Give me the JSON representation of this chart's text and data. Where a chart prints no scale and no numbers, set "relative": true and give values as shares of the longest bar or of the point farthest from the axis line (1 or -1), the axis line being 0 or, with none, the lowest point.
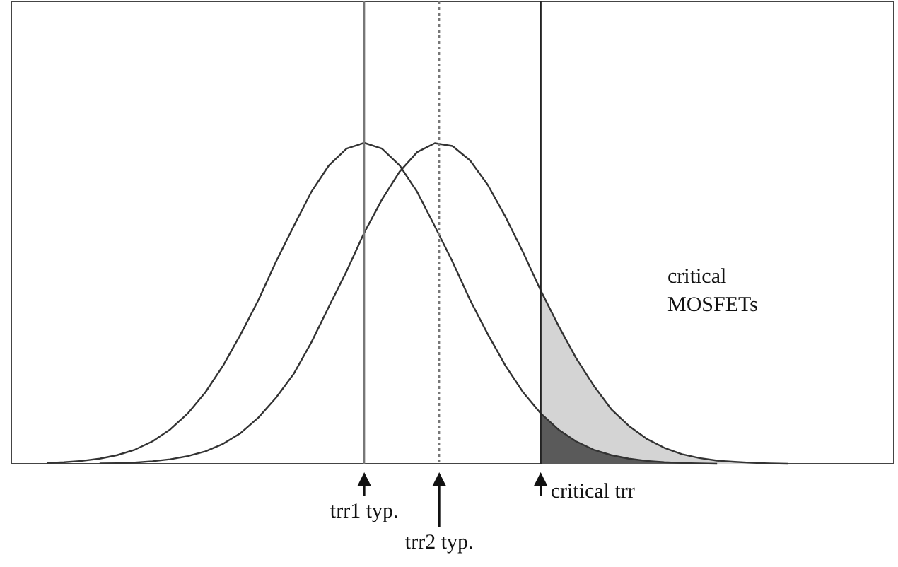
{
  "chart_data": {
    "type": "line",
    "relative": true,
    "categories": [
      null,
      null,
      null,
      null,
      null,
      null,
      null,
      null,
      null,
      null,
      null,
      null,
      null,
      null,
      null,
      null,
      null,
      null,
      null,
      null,
      null,
      null,
      null,
      null,
      null,
      null,
      null,
      null,
      null,
      null,
      null,
      null,
      null,
      null,
      null,
      null,
      null,
      null,
      null,
      null,
      null,
      null,
      null
    ],
    "series": [
      {
        "type": "area",
        "color": "#d4d4d4",
        "values": [
          null,
          null,
          null,
          null,
          null,
          null,
          null,
          null,
          null,
          null,
          null,
          null,
          null,
          null,
          null,
          null,
          null,
          null,
          null,
          null,
          null,
          null,
          null,
          null,
          null,
          null,
          null,
          null,
          0.54,
          0.431,
          0.33,
          0.244,
          0.17,
          0.118,
          0.078,
          0.05,
          0.03,
          0.018,
          0.01,
          0.006,
          0.003,
          0.001,
          0
        ]
      },
      {
        "type": "area",
        "color": "#5a5a5a",
        "values": [
          null,
          null,
          null,
          null,
          null,
          null,
          null,
          null,
          null,
          null,
          null,
          null,
          null,
          null,
          null,
          null,
          null,
          null,
          null,
          null,
          null,
          null,
          null,
          null,
          null,
          null,
          null,
          null,
          0.157,
          0.107,
          0.07,
          0.044,
          0.027,
          0.016,
          0.009,
          0.005,
          0.0025,
          0.001,
          0,
          null,
          null,
          null,
          null
        ]
      },
      {
        "color": "#333333",
        "values": [
          0.0025,
          0.005,
          0.009,
          0.016,
          0.027,
          0.044,
          0.07,
          0.107,
          0.157,
          0.223,
          0.306,
          0.404,
          0.51,
          0.63,
          0.74,
          0.847,
          0.93,
          0.982,
          1,
          0.982,
          0.93,
          0.847,
          0.74,
          0.63,
          0.51,
          0.404,
          0.306,
          0.223,
          0.157,
          0.107,
          0.07,
          0.044,
          0.027,
          0.016,
          0.009,
          0.005,
          0.0025,
          0.001,
          0,
          null,
          null,
          null,
          null
        ]
      },
      {
        "color": "#333333",
        "values": [
          null,
          null,
          null,
          0.001,
          0.002,
          0.004,
          0.008,
          0.014,
          0.024,
          0.039,
          0.062,
          0.096,
          0.144,
          0.206,
          0.28,
          0.378,
          0.49,
          0.6,
          0.72,
          0.823,
          0.91,
          0.971,
          0.999,
          0.99,
          0.945,
          0.869,
          0.77,
          0.659,
          0.54,
          0.431,
          0.33,
          0.244,
          0.17,
          0.118,
          0.078,
          0.05,
          0.03,
          0.018,
          0.01,
          0.006,
          0.003,
          0.001,
          0
        ]
      }
    ],
    "annotations": [
      "trr1 typ.",
      "trr2 typ.",
      "critical trr",
      "critical\nMOSFETs"
    ]
  }
}
